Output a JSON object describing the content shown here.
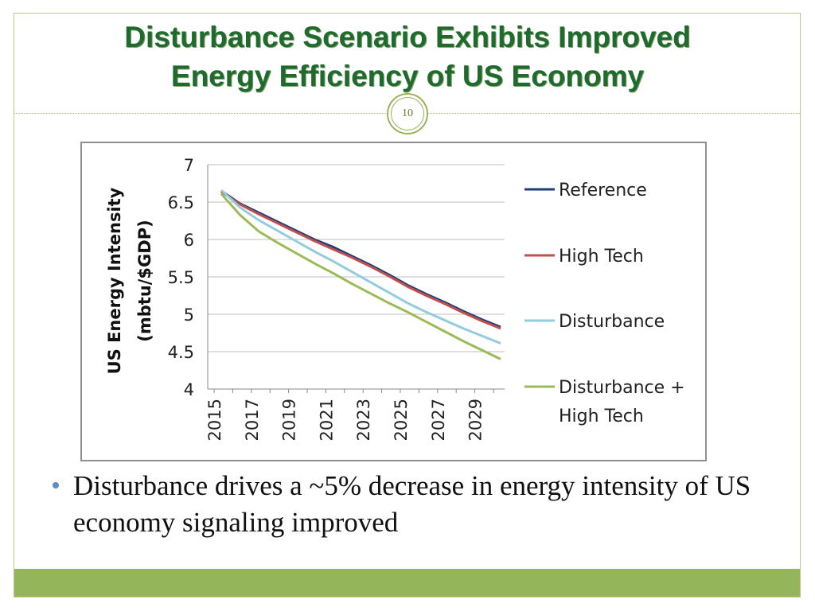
{
  "slide": {
    "title_line1": "Disturbance Scenario Exhibits Improved",
    "title_line2": "Energy Efficiency of US Economy",
    "page_number": "10",
    "bullet_text": "Disturbance drives a ~5% decrease in energy intensity of US economy signaling improved"
  },
  "colors": {
    "title": "#1f6b2e",
    "accent": "#95b55a",
    "bullet": "#5b8dc8"
  },
  "chart_data": {
    "type": "line",
    "title": "",
    "xlabel": "",
    "ylabel": "US Energy Intensity (mbtu/$GDP)",
    "ylabel_lines": [
      "US Energy Intensity",
      "(mbtu/$GDP)"
    ],
    "ylim": [
      4,
      7
    ],
    "yticks": [
      "4",
      "4.5",
      "5",
      "5.5",
      "6",
      "6.5",
      "7"
    ],
    "x": [
      2015,
      2016,
      2017,
      2018,
      2019,
      2020,
      2021,
      2022,
      2023,
      2024,
      2025,
      2026,
      2027,
      2028,
      2029,
      2030
    ],
    "xtick_labels": [
      "2015",
      "2017",
      "2019",
      "2021",
      "2023",
      "2025",
      "2027",
      "2029"
    ],
    "grid": true,
    "legend_position": "right",
    "series": [
      {
        "name": "Reference",
        "color": "#1f3e7a",
        "values": [
          6.65,
          6.48,
          6.36,
          6.24,
          6.12,
          6.0,
          5.9,
          5.78,
          5.66,
          5.53,
          5.39,
          5.27,
          5.16,
          5.04,
          4.93,
          4.83
        ]
      },
      {
        "name": "High Tech",
        "color": "#c0504d",
        "values": [
          6.64,
          6.47,
          6.34,
          6.22,
          6.1,
          5.98,
          5.87,
          5.76,
          5.64,
          5.51,
          5.37,
          5.25,
          5.14,
          5.02,
          4.91,
          4.81
        ]
      },
      {
        "name": "Disturbance",
        "color": "#93cddd",
        "values": [
          6.66,
          6.43,
          6.26,
          6.12,
          5.98,
          5.84,
          5.71,
          5.57,
          5.43,
          5.29,
          5.15,
          5.03,
          4.92,
          4.81,
          4.71,
          4.61
        ]
      },
      {
        "name": "Disturbance + High Tech",
        "color": "#9bbb59",
        "legend_lines": [
          "Disturbance +",
          "High Tech"
        ],
        "values": [
          6.61,
          6.33,
          6.11,
          5.96,
          5.82,
          5.68,
          5.55,
          5.41,
          5.28,
          5.15,
          5.03,
          4.9,
          4.77,
          4.64,
          4.52,
          4.4
        ]
      }
    ]
  }
}
